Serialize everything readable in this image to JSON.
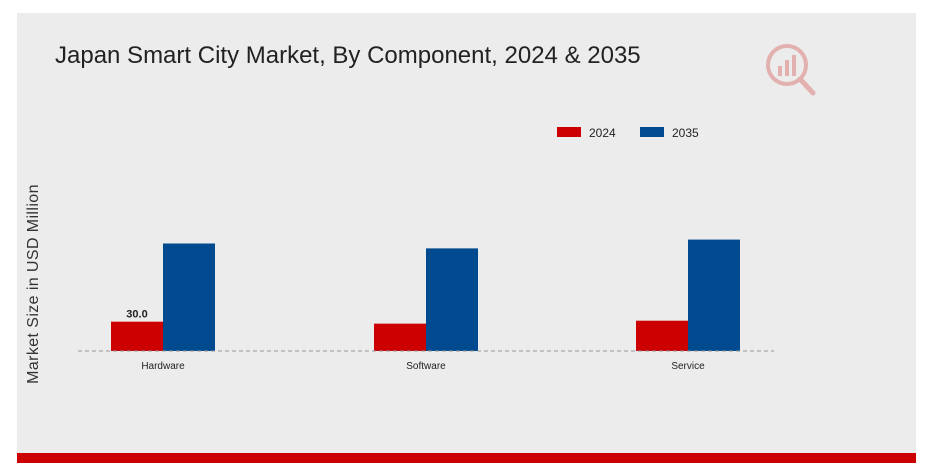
{
  "title": "Japan Smart City Market, By Component, 2024 & 2035",
  "colors": {
    "series_2024": "#cc0000",
    "series_2035": "#004a8f",
    "panel": "#ececec",
    "brand_bar": "#cc0000"
  },
  "icons": {
    "logo": "analytics-logo-icon"
  },
  "chart_data": {
    "type": "bar",
    "title": "Japan Smart City Market, By Component, 2024 & 2035",
    "ylabel": "Market Size in USD Million",
    "xlabel": "",
    "categories": [
      "Hardware",
      "Software",
      "Service"
    ],
    "series": [
      {
        "name": "2024",
        "values": [
          30.0,
          28.0,
          31.0
        ]
      },
      {
        "name": "2035",
        "values": [
          110.0,
          105.0,
          114.0
        ]
      }
    ],
    "data_labels": [
      {
        "series": "2024",
        "category": "Hardware",
        "text": "30.0"
      }
    ],
    "ylim": [
      0,
      220
    ],
    "grid": false,
    "legend": "top-right"
  }
}
